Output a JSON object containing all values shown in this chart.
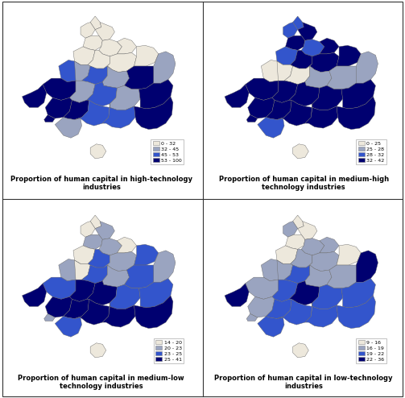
{
  "panels": [
    {
      "title": "Proportion of human capital in high-technology\nindustries",
      "legend_labels": [
        "0 - 32",
        "32 - 45",
        "45 - 53",
        "53 - 100"
      ],
      "legend_colors": [
        "#ede8dc",
        "#9aa4c0",
        "#3355cc",
        "#000070"
      ]
    },
    {
      "title": "Proportion of human capital in medium-high\ntechnology industries",
      "legend_labels": [
        "0 - 25",
        "25 - 28",
        "28 - 32",
        "32 - 42"
      ],
      "legend_colors": [
        "#ede8dc",
        "#9aa4c0",
        "#3355cc",
        "#000070"
      ]
    },
    {
      "title": "Proportion of human capital in medium-low\ntechnology industries",
      "legend_labels": [
        "14 - 20",
        "20 - 23",
        "23 - 25",
        "25 - 41"
      ],
      "legend_colors": [
        "#ede8dc",
        "#9aa4c0",
        "#3355cc",
        "#000070"
      ]
    },
    {
      "title": "Proportion of human capital in low-technology\nindustries",
      "legend_labels": [
        "9 - 16",
        "16 - 19",
        "19 - 22",
        "22 - 36"
      ],
      "legend_colors": [
        "#ede8dc",
        "#9aa4c0",
        "#3355cc",
        "#000070"
      ]
    }
  ],
  "edge_color": "#666666",
  "background_color": "#ffffff",
  "fig_width": 5.03,
  "fig_height": 4.94,
  "dpi": 100,
  "color_patterns": [
    [
      3,
      0,
      0,
      0,
      3,
      1,
      1,
      0,
      3,
      2,
      1,
      3,
      1,
      0,
      0,
      2,
      3,
      3,
      0,
      1,
      2,
      3,
      1,
      2,
      3,
      0,
      1,
      3,
      2,
      1
    ],
    [
      3,
      1,
      2,
      3,
      3,
      3,
      2,
      1,
      3,
      3,
      2,
      3,
      1,
      0,
      1,
      3,
      3,
      2,
      1,
      0,
      3,
      3,
      2,
      3,
      3,
      1,
      2,
      3,
      3,
      2
    ],
    [
      3,
      0,
      1,
      0,
      3,
      2,
      1,
      0,
      3,
      2,
      2,
      1,
      1,
      0,
      2,
      3,
      3,
      3,
      2,
      1,
      1,
      3,
      2,
      1,
      3,
      2,
      2,
      1,
      3,
      2
    ],
    [
      0,
      1,
      0,
      0,
      2,
      0,
      1,
      1,
      3,
      1,
      1,
      0,
      0,
      1,
      2,
      1,
      2,
      0,
      0,
      1,
      2,
      2,
      1,
      2,
      1,
      1,
      0,
      1,
      2,
      0
    ]
  ]
}
